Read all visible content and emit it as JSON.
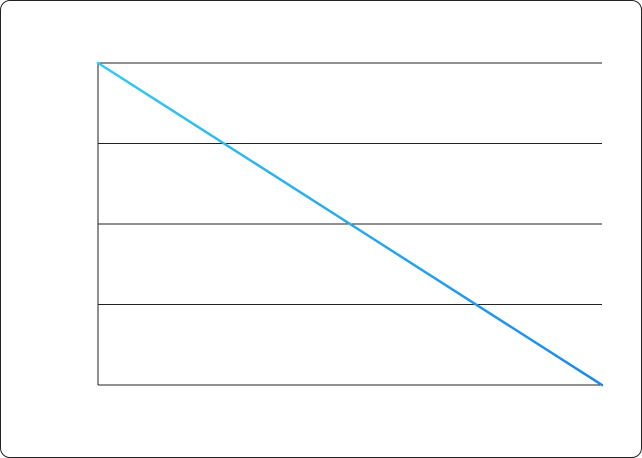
{
  "chart_data": {
    "type": "line",
    "title": "",
    "xlabel": "",
    "ylabel": "",
    "x": [
      0,
      1
    ],
    "series": [
      {
        "values": [
          4,
          0
        ]
      }
    ],
    "xlim": [
      0,
      1
    ],
    "ylim": [
      0,
      4
    ],
    "yticks": [
      0,
      1,
      2,
      3,
      4
    ],
    "grid": true,
    "line_gradient": [
      "#33ccee",
      "#1a88ee"
    ],
    "grid_color": "#222222"
  }
}
